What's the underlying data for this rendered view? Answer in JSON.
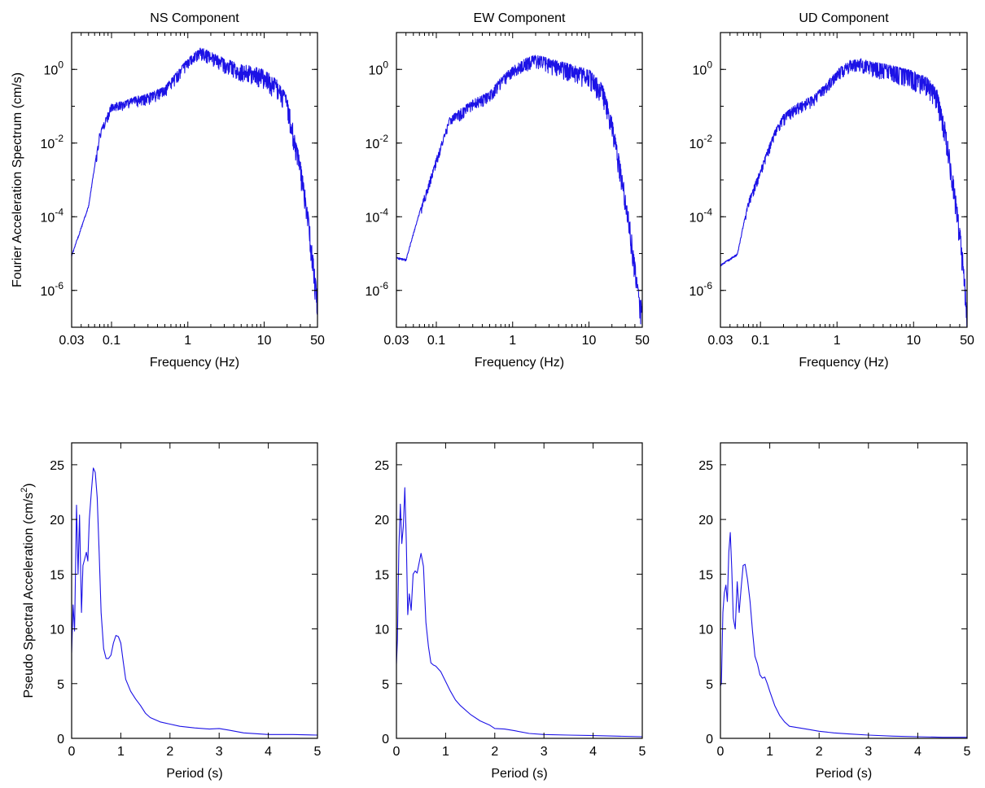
{
  "colors": {
    "series": "#1c12e6",
    "axes": "#000000",
    "background": "#ffffff"
  },
  "chart_data": [
    {
      "type": "line",
      "title": "NS Component",
      "xlabel": "Frequency (Hz)",
      "ylabel": "Fourier Acceleration Spectrum (cm/s)",
      "xscale": "log",
      "yscale": "log",
      "xlim": [
        0.03,
        50
      ],
      "ylim": [
        1e-07,
        10
      ],
      "xticks": [
        {
          "v": 0.03,
          "label": "0.03"
        },
        {
          "v": 0.1,
          "label": "0.1"
        },
        {
          "v": 1,
          "label": "1"
        },
        {
          "v": 10,
          "label": "10"
        },
        {
          "v": 50,
          "label": "50"
        }
      ],
      "yticks": [
        {
          "v": 1,
          "base": "10",
          "exp": "0"
        },
        {
          "v": 0.01,
          "base": "10",
          "exp": "-2"
        },
        {
          "v": 0.0001,
          "base": "10",
          "exp": "-4"
        },
        {
          "v": 1e-06,
          "base": "10",
          "exp": "-6"
        }
      ],
      "grid": false,
      "legend": "none",
      "x": [
        0.03,
        0.05,
        0.07,
        0.1,
        0.15,
        0.2,
        0.3,
        0.5,
        0.7,
        1,
        1.5,
        2,
        3,
        5,
        7,
        10,
        15,
        20,
        25,
        30,
        35,
        40,
        45,
        50
      ],
      "y": [
        9e-06,
        0.0002,
        0.02,
        0.12,
        0.14,
        0.18,
        0.22,
        0.35,
        0.8,
        2,
        4,
        3,
        2,
        1.4,
        1.2,
        1,
        0.5,
        0.2,
        0.02,
        0.003,
        0.0004,
        5e-05,
        5e-06,
        7e-07
      ],
      "roughness": 0.9
    },
    {
      "type": "line",
      "title": "EW Component",
      "xlabel": "Frequency (Hz)",
      "ylabel": "",
      "xscale": "log",
      "yscale": "log",
      "xlim": [
        0.03,
        50
      ],
      "ylim": [
        1e-07,
        10
      ],
      "xticks": [
        {
          "v": 0.03,
          "label": "0.03"
        },
        {
          "v": 0.1,
          "label": "0.1"
        },
        {
          "v": 1,
          "label": "1"
        },
        {
          "v": 10,
          "label": "10"
        },
        {
          "v": 50,
          "label": "50"
        }
      ],
      "yticks": [
        {
          "v": 1,
          "base": "10",
          "exp": "0"
        },
        {
          "v": 0.01,
          "base": "10",
          "exp": "-2"
        },
        {
          "v": 0.0001,
          "base": "10",
          "exp": "-4"
        },
        {
          "v": 1e-06,
          "base": "10",
          "exp": "-6"
        }
      ],
      "grid": false,
      "legend": "none",
      "x": [
        0.03,
        0.04,
        0.07,
        0.1,
        0.15,
        0.2,
        0.3,
        0.5,
        0.7,
        1,
        1.5,
        2,
        3,
        5,
        7,
        10,
        15,
        20,
        25,
        30,
        35,
        40,
        45,
        50
      ],
      "y": [
        8e-06,
        7e-06,
        0.0004,
        0.004,
        0.05,
        0.08,
        0.15,
        0.25,
        0.6,
        1.2,
        2,
        2.5,
        2,
        1.5,
        1.2,
        1,
        0.4,
        0.05,
        0.004,
        0.0005,
        6e-05,
        6e-06,
        9e-07,
        4e-07
      ],
      "roughness": 0.9
    },
    {
      "type": "line",
      "title": "UD Component",
      "xlabel": "Frequency (Hz)",
      "ylabel": "",
      "xscale": "log",
      "yscale": "log",
      "xlim": [
        0.03,
        50
      ],
      "ylim": [
        1e-07,
        10
      ],
      "xticks": [
        {
          "v": 0.03,
          "label": "0.03"
        },
        {
          "v": 0.1,
          "label": "0.1"
        },
        {
          "v": 1,
          "label": "1"
        },
        {
          "v": 10,
          "label": "10"
        },
        {
          "v": 50,
          "label": "50"
        }
      ],
      "yticks": [
        {
          "v": 1,
          "base": "10",
          "exp": "0"
        },
        {
          "v": 0.01,
          "base": "10",
          "exp": "-2"
        },
        {
          "v": 0.0001,
          "base": "10",
          "exp": "-4"
        },
        {
          "v": 1e-06,
          "base": "10",
          "exp": "-6"
        }
      ],
      "grid": false,
      "legend": "none",
      "x": [
        0.03,
        0.05,
        0.07,
        0.1,
        0.15,
        0.2,
        0.3,
        0.5,
        0.7,
        1,
        1.5,
        2,
        3,
        5,
        7,
        10,
        15,
        20,
        25,
        30,
        35,
        40,
        45,
        50
      ],
      "y": [
        5e-06,
        1e-05,
        0.0003,
        0.002,
        0.02,
        0.06,
        0.12,
        0.2,
        0.4,
        1,
        1.8,
        2,
        1.6,
        1.3,
        1.1,
        0.9,
        0.6,
        0.3,
        0.05,
        0.005,
        0.0005,
        6e-05,
        6e-06,
        4e-07
      ],
      "roughness": 0.9
    },
    {
      "type": "line",
      "title": "",
      "xlabel": "Period (s)",
      "ylabel_parts": {
        "main": "Pseudo Spectral Acceleration (cm/s",
        "sup": "2",
        "end": ")"
      },
      "xlim": [
        0,
        5
      ],
      "ylim": [
        0,
        27
      ],
      "xticks": [
        {
          "v": 0,
          "label": "0"
        },
        {
          "v": 1,
          "label": "1"
        },
        {
          "v": 2,
          "label": "2"
        },
        {
          "v": 3,
          "label": "3"
        },
        {
          "v": 4,
          "label": "4"
        },
        {
          "v": 5,
          "label": "5"
        }
      ],
      "yticks": [
        {
          "v": 0,
          "label": "0"
        },
        {
          "v": 5,
          "label": "5"
        },
        {
          "v": 10,
          "label": "10"
        },
        {
          "v": 15,
          "label": "15"
        },
        {
          "v": 20,
          "label": "20"
        },
        {
          "v": 25,
          "label": "25"
        }
      ],
      "grid": false,
      "legend": "none",
      "x": [
        0,
        0.03,
        0.06,
        0.1,
        0.13,
        0.16,
        0.2,
        0.23,
        0.26,
        0.3,
        0.33,
        0.36,
        0.4,
        0.44,
        0.48,
        0.52,
        0.56,
        0.6,
        0.65,
        0.7,
        0.75,
        0.8,
        0.85,
        0.9,
        0.95,
        1.0,
        1.05,
        1.1,
        1.2,
        1.3,
        1.4,
        1.5,
        1.6,
        1.8,
        2.0,
        2.2,
        2.5,
        2.8,
        3.0,
        3.2,
        3.5,
        4.0,
        4.5,
        5.0
      ],
      "y": [
        7.8,
        12.2,
        9.8,
        21.3,
        15,
        20.4,
        11.5,
        15.8,
        16.3,
        17,
        16.2,
        20,
        22.5,
        24.7,
        24.3,
        22,
        17,
        11.5,
        8.2,
        7.3,
        7.3,
        7.6,
        8.7,
        9.4,
        9.3,
        8.7,
        7,
        5.4,
        4.3,
        3.6,
        3,
        2.3,
        1.9,
        1.5,
        1.3,
        1.1,
        0.95,
        0.85,
        0.9,
        0.75,
        0.5,
        0.35,
        0.35,
        0.3
      ],
      "roughness": 0
    },
    {
      "type": "line",
      "title": "",
      "xlabel": "Period (s)",
      "ylabel": "",
      "xlim": [
        0,
        5
      ],
      "ylim": [
        0,
        27
      ],
      "xticks": [
        {
          "v": 0,
          "label": "0"
        },
        {
          "v": 1,
          "label": "1"
        },
        {
          "v": 2,
          "label": "2"
        },
        {
          "v": 3,
          "label": "3"
        },
        {
          "v": 4,
          "label": "4"
        },
        {
          "v": 5,
          "label": "5"
        }
      ],
      "yticks": [
        {
          "v": 0,
          "label": "0"
        },
        {
          "v": 5,
          "label": "5"
        },
        {
          "v": 10,
          "label": "10"
        },
        {
          "v": 15,
          "label": "15"
        },
        {
          "v": 20,
          "label": "20"
        },
        {
          "v": 25,
          "label": "25"
        }
      ],
      "grid": false,
      "legend": "none",
      "x": [
        0,
        0.02,
        0.05,
        0.08,
        0.11,
        0.14,
        0.17,
        0.2,
        0.23,
        0.26,
        0.3,
        0.34,
        0.38,
        0.42,
        0.46,
        0.5,
        0.55,
        0.6,
        0.65,
        0.7,
        0.75,
        0.8,
        0.9,
        1.0,
        1.1,
        1.2,
        1.3,
        1.5,
        1.7,
        1.9,
        2.0,
        2.2,
        2.4,
        2.7,
        3.0,
        3.5,
        4.0,
        4.5,
        5.0
      ],
      "y": [
        6.8,
        9,
        17.5,
        21.4,
        17.8,
        19.4,
        22.9,
        18,
        11.3,
        13.2,
        11.7,
        15,
        15.3,
        15.1,
        16,
        16.9,
        15.7,
        10.6,
        8.4,
        6.9,
        6.7,
        6.6,
        6.1,
        5.2,
        4.3,
        3.5,
        3.0,
        2.2,
        1.6,
        1.2,
        0.9,
        0.85,
        0.7,
        0.45,
        0.35,
        0.3,
        0.25,
        0.2,
        0.15
      ],
      "roughness": 0
    },
    {
      "type": "line",
      "title": "",
      "xlabel": "Period (s)",
      "ylabel": "",
      "xlim": [
        0,
        5
      ],
      "ylim": [
        0,
        27
      ],
      "xticks": [
        {
          "v": 0,
          "label": "0"
        },
        {
          "v": 1,
          "label": "1"
        },
        {
          "v": 2,
          "label": "2"
        },
        {
          "v": 3,
          "label": "3"
        },
        {
          "v": 4,
          "label": "4"
        },
        {
          "v": 5,
          "label": "5"
        }
      ],
      "yticks": [
        {
          "v": 0,
          "label": "0"
        },
        {
          "v": 5,
          "label": "5"
        },
        {
          "v": 10,
          "label": "10"
        },
        {
          "v": 15,
          "label": "15"
        },
        {
          "v": 20,
          "label": "20"
        },
        {
          "v": 25,
          "label": "25"
        }
      ],
      "grid": false,
      "legend": "none",
      "x": [
        0,
        0.02,
        0.05,
        0.08,
        0.11,
        0.14,
        0.17,
        0.2,
        0.23,
        0.26,
        0.3,
        0.34,
        0.38,
        0.42,
        0.46,
        0.5,
        0.55,
        0.6,
        0.65,
        0.7,
        0.75,
        0.8,
        0.85,
        0.9,
        0.95,
        1.0,
        1.1,
        1.2,
        1.3,
        1.4,
        1.6,
        1.8,
        2.0,
        2.3,
        2.6,
        3.0,
        3.5,
        4.0,
        4.5,
        5.0
      ],
      "y": [
        4.8,
        5,
        11.5,
        13.3,
        14,
        12.5,
        17,
        18.8,
        15.5,
        11,
        10,
        14.3,
        11.5,
        13.8,
        15.8,
        15.9,
        14.5,
        12.5,
        9.8,
        7.5,
        6.8,
        5.8,
        5.5,
        5.6,
        5.0,
        4.3,
        3.0,
        2.1,
        1.5,
        1.1,
        0.95,
        0.8,
        0.65,
        0.5,
        0.4,
        0.3,
        0.2,
        0.15,
        0.1,
        0.1
      ],
      "roughness": 0
    }
  ]
}
